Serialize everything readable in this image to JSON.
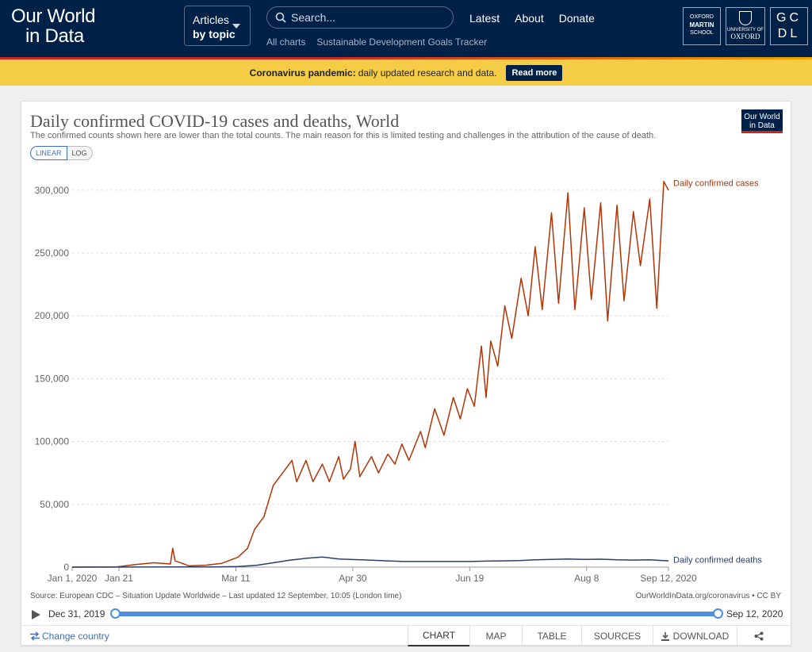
{
  "header": {
    "logo_line1": "Our World",
    "logo_line2": "in Data",
    "articles_line1": "Articles",
    "articles_line2": "by topic",
    "search_placeholder": "Search...",
    "nav": [
      "Latest",
      "About",
      "Donate"
    ],
    "subnav": [
      "All charts",
      "Sustainable Development Goals Tracker"
    ],
    "partners": {
      "oxford_martin": [
        "OXFORD",
        "MARTIN",
        "SCHOOL"
      ],
      "uni_small": "UNIVERSITY OF",
      "uni_big": "OXFORD",
      "gcdl_top": "GC",
      "gcdl_bottom": "DL"
    }
  },
  "banner": {
    "bold": "Coronavirus pandemic:",
    "text": "daily updated research and data.",
    "button": "Read more"
  },
  "chart": {
    "badge_line1": "Our World",
    "badge_line2": "in Data",
    "scale_linear": "LINEAR",
    "scale_log": "LOG",
    "source": "Source: European CDC – Situation Update Worldwide – Last updated 12 September, 10:05 (London time)",
    "license": "OurWorldInData.org/coronavirus • CC BY",
    "timeline_start": "Dec 31, 2019",
    "timeline_end": "Sep 12, 2020",
    "change_country": "Change country",
    "tabs": [
      "CHART",
      "MAP",
      "TABLE",
      "SOURCES",
      "DOWNLOAD"
    ],
    "active_tab": "CHART",
    "colors": {
      "cases": "#b13507",
      "deaths": "#2c3e66",
      "accent": "#3c6fba"
    }
  },
  "chart_data": {
    "type": "line",
    "title": "Daily confirmed COVID-19 cases and deaths, World",
    "subtitle": "The confirmed counts shown here are lower than the total counts. The main reason for this is limited testing and challenges in the attribution of the cause of death.",
    "x_ticks": [
      "Jan 1, 2020",
      "Jan 21",
      "Mar 11",
      "Apr 30",
      "Jun 19",
      "Aug 8",
      "Sep 12, 2020"
    ],
    "x_tick_dates": [
      "2020-01-01",
      "2020-01-21",
      "2020-03-11",
      "2020-04-30",
      "2020-06-19",
      "2020-08-08",
      "2020-09-12"
    ],
    "y_ticks": [
      0,
      50000,
      100000,
      150000,
      200000,
      250000,
      300000
    ],
    "ylim": [
      0,
      310000
    ],
    "xlim": [
      "2020-01-01",
      "2020-09-12"
    ],
    "grid": "horizontal dashed",
    "series": [
      {
        "name": "Daily confirmed cases",
        "points": [
          [
            "2020-01-01",
            0
          ],
          [
            "2020-01-20",
            100
          ],
          [
            "2020-01-28",
            2000
          ],
          [
            "2020-02-05",
            3500
          ],
          [
            "2020-02-12",
            2500
          ],
          [
            "2020-02-13",
            15000
          ],
          [
            "2020-02-14",
            5000
          ],
          [
            "2020-02-20",
            1000
          ],
          [
            "2020-02-27",
            1500
          ],
          [
            "2020-03-05",
            3000
          ],
          [
            "2020-03-12",
            8000
          ],
          [
            "2020-03-16",
            15000
          ],
          [
            "2020-03-19",
            30000
          ],
          [
            "2020-03-23",
            40000
          ],
          [
            "2020-03-27",
            65000
          ],
          [
            "2020-03-31",
            75000
          ],
          [
            "2020-04-04",
            85000
          ],
          [
            "2020-04-06",
            68000
          ],
          [
            "2020-04-10",
            85000
          ],
          [
            "2020-04-13",
            68000
          ],
          [
            "2020-04-17",
            82000
          ],
          [
            "2020-04-20",
            68000
          ],
          [
            "2020-04-24",
            88000
          ],
          [
            "2020-04-26",
            70000
          ],
          [
            "2020-04-29",
            78000
          ],
          [
            "2020-05-01",
            100000
          ],
          [
            "2020-05-03",
            72000
          ],
          [
            "2020-05-08",
            88000
          ],
          [
            "2020-05-11",
            75000
          ],
          [
            "2020-05-15",
            90000
          ],
          [
            "2020-05-18",
            82000
          ],
          [
            "2020-05-21",
            98000
          ],
          [
            "2020-05-24",
            85000
          ],
          [
            "2020-05-29",
            108000
          ],
          [
            "2020-05-31",
            95000
          ],
          [
            "2020-06-04",
            126000
          ],
          [
            "2020-06-08",
            105000
          ],
          [
            "2020-06-12",
            135000
          ],
          [
            "2020-06-15",
            118000
          ],
          [
            "2020-06-18",
            142000
          ],
          [
            "2020-06-21",
            128000
          ],
          [
            "2020-06-24",
            176000
          ],
          [
            "2020-06-26",
            135000
          ],
          [
            "2020-06-28",
            180000
          ],
          [
            "2020-07-01",
            160000
          ],
          [
            "2020-07-04",
            208000
          ],
          [
            "2020-07-07",
            182000
          ],
          [
            "2020-07-11",
            230000
          ],
          [
            "2020-07-14",
            200000
          ],
          [
            "2020-07-17",
            255000
          ],
          [
            "2020-07-20",
            205000
          ],
          [
            "2020-07-24",
            282000
          ],
          [
            "2020-07-27",
            210000
          ],
          [
            "2020-07-31",
            298000
          ],
          [
            "2020-08-03",
            205000
          ],
          [
            "2020-08-07",
            286000
          ],
          [
            "2020-08-10",
            213000
          ],
          [
            "2020-08-14",
            290000
          ],
          [
            "2020-08-17",
            196000
          ],
          [
            "2020-08-21",
            288000
          ],
          [
            "2020-08-24",
            212000
          ],
          [
            "2020-08-28",
            283000
          ],
          [
            "2020-08-31",
            240000
          ],
          [
            "2020-09-04",
            293000
          ],
          [
            "2020-09-07",
            206000
          ],
          [
            "2020-09-10",
            307000
          ],
          [
            "2020-09-12",
            300000
          ]
        ]
      },
      {
        "name": "Daily confirmed deaths",
        "points": [
          [
            "2020-01-01",
            0
          ],
          [
            "2020-02-10",
            100
          ],
          [
            "2020-03-01",
            200
          ],
          [
            "2020-03-12",
            500
          ],
          [
            "2020-03-20",
            1500
          ],
          [
            "2020-03-27",
            3500
          ],
          [
            "2020-04-03",
            5500
          ],
          [
            "2020-04-10",
            7000
          ],
          [
            "2020-04-17",
            8000
          ],
          [
            "2020-04-24",
            6500
          ],
          [
            "2020-05-01",
            6000
          ],
          [
            "2020-05-08",
            5500
          ],
          [
            "2020-05-15",
            5000
          ],
          [
            "2020-05-22",
            4500
          ],
          [
            "2020-05-29",
            4500
          ],
          [
            "2020-06-05",
            4500
          ],
          [
            "2020-06-12",
            4500
          ],
          [
            "2020-06-19",
            4500
          ],
          [
            "2020-06-26",
            4800
          ],
          [
            "2020-07-03",
            5000
          ],
          [
            "2020-07-10",
            5200
          ],
          [
            "2020-07-17",
            5800
          ],
          [
            "2020-07-24",
            6200
          ],
          [
            "2020-07-31",
            6500
          ],
          [
            "2020-08-07",
            6200
          ],
          [
            "2020-08-14",
            6300
          ],
          [
            "2020-08-21",
            5800
          ],
          [
            "2020-08-28",
            5600
          ],
          [
            "2020-09-04",
            5800
          ],
          [
            "2020-09-12",
            5000
          ]
        ]
      }
    ]
  }
}
